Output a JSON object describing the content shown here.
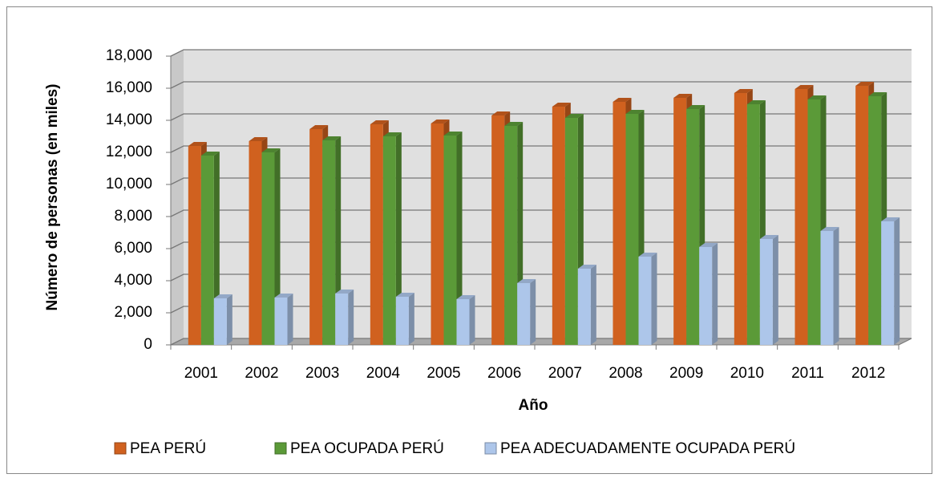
{
  "chart_data": {
    "type": "bar3d",
    "x_label": "Año",
    "y_label": "Número de personas (en miles)",
    "categories": [
      "2001",
      "2002",
      "2003",
      "2004",
      "2005",
      "2006",
      "2007",
      "2008",
      "2009",
      "2010",
      "2011",
      "2012"
    ],
    "series": [
      {
        "name": "PEA PERÚ",
        "color": "#d0611f",
        "values": [
          12400,
          12700,
          13450,
          13750,
          13800,
          14300,
          14850,
          15150,
          15400,
          15700,
          15950,
          16150
        ]
      },
      {
        "name": "PEA OCUPADA PERÚ",
        "color": "#5b9a38",
        "values": [
          11800,
          12000,
          12750,
          13000,
          13050,
          13650,
          14150,
          14400,
          14700,
          15000,
          15300,
          15500
        ]
      },
      {
        "name": "PEA ADECUADAMENTE OCUPADA PERÚ",
        "color": "#adc6ea",
        "values": [
          2900,
          2950,
          3200,
          3000,
          2850,
          3850,
          4750,
          5500,
          6100,
          6600,
          7100,
          7700
        ]
      }
    ],
    "ylim": [
      0,
      18000
    ],
    "yticks": [
      0,
      {
        "value": 2000,
        "label": "2,000"
      },
      {
        "value": 4000,
        "label": "4,000"
      },
      {
        "value": 6000,
        "label": "6,000"
      },
      {
        "value": 8000,
        "label": "8,000"
      },
      {
        "value": 10000,
        "label": "10,000"
      },
      {
        "value": 12000,
        "label": "12,000"
      },
      {
        "value": 14000,
        "label": "14,000"
      },
      {
        "value": 16000,
        "label": "16,000"
      },
      {
        "value": 18000,
        "label": "18,000"
      }
    ],
    "grid": true,
    "legend": "bottom"
  }
}
